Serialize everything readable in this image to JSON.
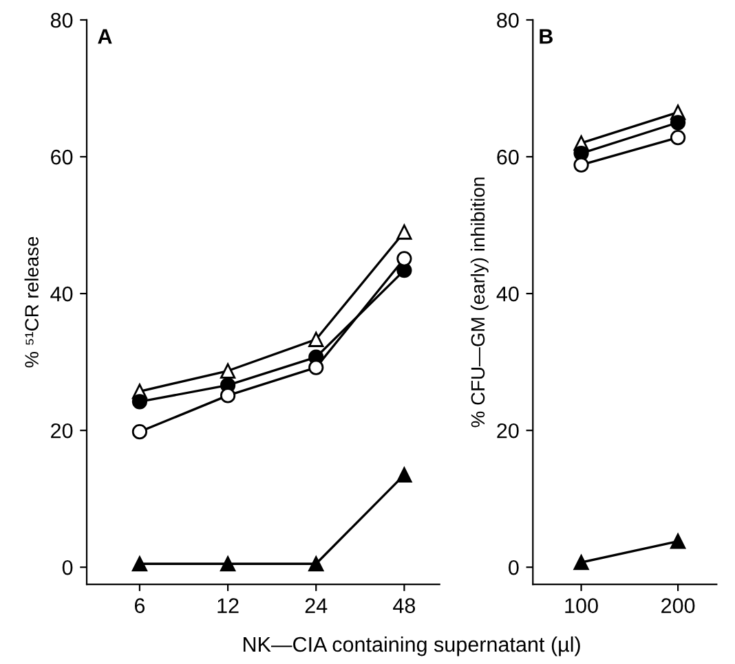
{
  "chart_data": [
    {
      "type": "line",
      "title": "A",
      "ylabel": "% ⁵¹CR release",
      "xlabel": "NK—CIA containing supernatant (µl)",
      "categories": [
        "6",
        "12",
        "24",
        "48"
      ],
      "ylim": [
        -2.5,
        80
      ],
      "yticks": [
        0,
        20,
        40,
        60,
        80
      ],
      "grid": false,
      "legend": false,
      "series": [
        {
          "color": "#ffffff",
          "marker": "triangle",
          "values": [
            25.7,
            28.7,
            33.3,
            49.0
          ]
        },
        {
          "color": "#000000",
          "marker": "circle",
          "values": [
            24.2,
            26.6,
            30.7,
            43.4
          ]
        },
        {
          "color": "#ffffff",
          "marker": "circle",
          "values": [
            19.8,
            25.1,
            29.2,
            45.1
          ]
        },
        {
          "color": "#000000",
          "marker": "triangle",
          "values": [
            0.5,
            0.5,
            0.5,
            13.5
          ]
        }
      ]
    },
    {
      "type": "line",
      "title": "B",
      "ylabel": "% CFU—GM (early) inhibition",
      "x": [
        100,
        200
      ],
      "xlim": [
        50,
        240
      ],
      "xticks": [
        100,
        200
      ],
      "ylim": [
        -2.5,
        80
      ],
      "yticks": [
        0,
        20,
        40,
        60,
        80
      ],
      "grid": false,
      "legend": false,
      "series": [
        {
          "color": "#ffffff",
          "marker": "triangle",
          "values": [
            62.0,
            66.5
          ]
        },
        {
          "color": "#000000",
          "marker": "circle",
          "values": [
            60.5,
            65.0
          ]
        },
        {
          "color": "#ffffff",
          "marker": "circle",
          "values": [
            58.8,
            62.8
          ]
        },
        {
          "color": "#000000",
          "marker": "triangle",
          "values": [
            0.7,
            3.8
          ]
        }
      ]
    }
  ]
}
